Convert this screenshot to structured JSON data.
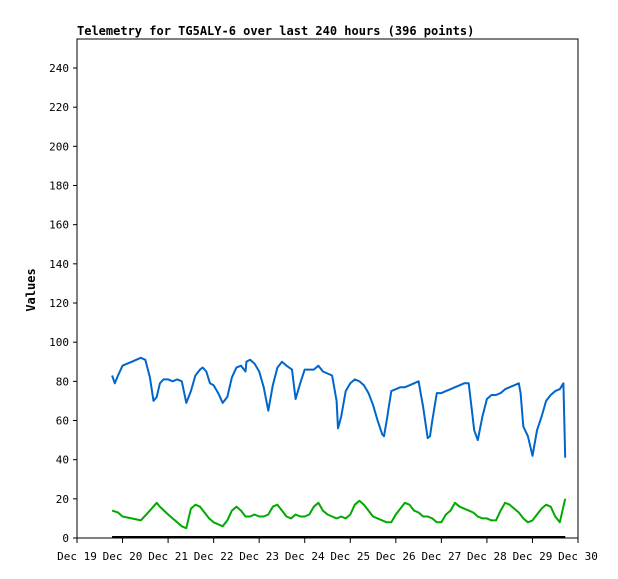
{
  "chart_data": {
    "type": "line",
    "title": "Telemetry for TG5ALY-6 over last 240 hours (396 points)",
    "xlabel": "",
    "ylabel": "Values",
    "ylim": [
      0,
      250
    ],
    "y_ticks": [
      0,
      20,
      40,
      60,
      80,
      100,
      120,
      140,
      160,
      180,
      200,
      220,
      240
    ],
    "x_tick_labels": [
      "Dec 19",
      "Dec 20",
      "Dec 21",
      "Dec 22",
      "Dec 23",
      "Dec 24",
      "Dec 25",
      "Dec 26",
      "Dec 27",
      "Dec 28",
      "Dec 29",
      "Dec 30"
    ],
    "x_unit": "day since Dec 19 00:00",
    "xlim": [
      0,
      11
    ],
    "grid": false,
    "colors": {
      "series_1": "#0066cc",
      "series_2": "#00aa00",
      "baseline": "#000000"
    },
    "series": [
      {
        "color": "#0066cc",
        "x": [
          0.77,
          0.83,
          0.9,
          1.0,
          1.1,
          1.2,
          1.3,
          1.4,
          1.5,
          1.6,
          1.68,
          1.75,
          1.82,
          1.9,
          2.0,
          2.1,
          2.2,
          2.3,
          2.4,
          2.5,
          2.6,
          2.7,
          2.76,
          2.84,
          2.92,
          3.0,
          3.1,
          3.2,
          3.3,
          3.4,
          3.5,
          3.6,
          3.7,
          3.72,
          3.8,
          3.9,
          4.0,
          4.1,
          4.2,
          4.3,
          4.4,
          4.5,
          4.6,
          4.72,
          4.8,
          4.9,
          5.0,
          5.1,
          5.2,
          5.3,
          5.4,
          5.5,
          5.6,
          5.7,
          5.73,
          5.8,
          5.9,
          6.0,
          6.1,
          6.2,
          6.3,
          6.4,
          6.5,
          6.6,
          6.7,
          6.74,
          6.8,
          6.9,
          7.0,
          7.1,
          7.2,
          7.3,
          7.4,
          7.5,
          7.6,
          7.7,
          7.75,
          7.8,
          7.9,
          8.0,
          8.1,
          8.2,
          8.3,
          8.4,
          8.5,
          8.6,
          8.72,
          8.8,
          8.9,
          9.0,
          9.1,
          9.2,
          9.3,
          9.4,
          9.5,
          9.6,
          9.7,
          9.74,
          9.8,
          9.9,
          10.0,
          10.1,
          10.2,
          10.3,
          10.4,
          10.5,
          10.6,
          10.68,
          10.72
        ],
        "y": [
          83,
          79,
          83,
          88,
          89,
          90,
          91,
          92,
          91,
          82,
          70,
          72,
          79,
          81,
          81,
          80,
          81,
          80,
          69,
          75,
          83,
          86,
          87,
          85,
          79,
          78,
          74,
          69,
          72,
          82,
          87,
          88,
          85,
          90,
          91,
          89,
          85,
          77,
          65,
          78,
          87,
          90,
          88,
          86,
          71,
          79,
          86,
          86,
          86,
          88,
          85,
          84,
          83,
          70,
          56,
          62,
          75,
          79,
          81,
          80,
          78,
          74,
          68,
          60,
          53,
          52,
          60,
          75,
          76,
          77,
          77,
          78,
          79,
          80,
          67,
          51,
          52,
          60,
          74,
          74,
          75,
          76,
          77,
          78,
          79,
          79,
          55,
          50,
          62,
          71,
          73,
          73,
          74,
          76,
          77,
          78,
          79,
          74,
          57,
          52,
          42,
          55,
          62,
          70,
          73,
          75,
          76,
          79,
          41
        ]
      },
      {
        "color": "#00aa00",
        "x": [
          0.77,
          0.9,
          1.0,
          1.2,
          1.4,
          1.6,
          1.75,
          1.82,
          2.0,
          2.1,
          2.2,
          2.3,
          2.4,
          2.5,
          2.6,
          2.7,
          2.8,
          2.9,
          3.0,
          3.1,
          3.2,
          3.3,
          3.4,
          3.5,
          3.6,
          3.7,
          3.8,
          3.9,
          4.0,
          4.1,
          4.2,
          4.3,
          4.4,
          4.5,
          4.6,
          4.7,
          4.8,
          4.9,
          5.0,
          5.1,
          5.2,
          5.3,
          5.4,
          5.5,
          5.6,
          5.7,
          5.8,
          5.9,
          6.0,
          6.1,
          6.2,
          6.3,
          6.4,
          6.5,
          6.6,
          6.7,
          6.8,
          6.9,
          7.0,
          7.1,
          7.2,
          7.3,
          7.4,
          7.5,
          7.6,
          7.7,
          7.8,
          7.9,
          8.0,
          8.1,
          8.2,
          8.3,
          8.4,
          8.5,
          8.6,
          8.7,
          8.8,
          8.9,
          9.0,
          9.1,
          9.2,
          9.3,
          9.4,
          9.5,
          9.6,
          9.7,
          9.8,
          9.9,
          10.0,
          10.1,
          10.2,
          10.3,
          10.4,
          10.5,
          10.6,
          10.72
        ],
        "y": [
          14,
          13,
          11,
          10,
          9,
          14,
          18,
          16,
          12,
          10,
          8,
          6,
          5,
          15,
          17,
          16,
          13,
          10,
          8,
          7,
          6,
          9,
          14,
          16,
          14,
          11,
          11,
          12,
          11,
          11,
          12,
          16,
          17,
          14,
          11,
          10,
          12,
          11,
          11,
          12,
          16,
          18,
          14,
          12,
          11,
          10,
          11,
          10,
          12,
          17,
          19,
          17,
          14,
          11,
          10,
          9,
          8,
          8,
          12,
          15,
          18,
          17,
          14,
          13,
          11,
          11,
          10,
          8,
          8,
          12,
          14,
          18,
          16,
          15,
          14,
          13,
          11,
          10,
          10,
          9,
          9,
          14,
          18,
          17,
          15,
          13,
          10,
          8,
          9,
          12,
          15,
          17,
          16,
          11,
          8,
          20
        ]
      }
    ]
  }
}
